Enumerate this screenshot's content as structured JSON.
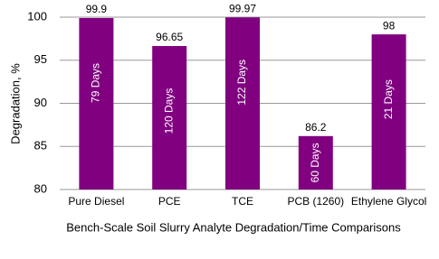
{
  "chart_data": {
    "type": "bar",
    "y_label": "Degradation, %",
    "x_label": "Bench-Scale Soil Slurry Analyte Degradation/Time Comparisons",
    "categories": [
      "Pure Diesel",
      "PCE",
      "TCE",
      "PCB (1260)",
      "Ethylene Glycol"
    ],
    "values": [
      99.9,
      96.65,
      99.97,
      86.2,
      98
    ],
    "bar_labels": [
      "79 Days",
      "120 Days",
      "122 Days",
      "60 Days",
      "21 Days"
    ],
    "color": "#800080",
    "ylim": [
      80,
      100
    ],
    "yticks": [
      80,
      85,
      90,
      95,
      100
    ],
    "grid": true
  }
}
